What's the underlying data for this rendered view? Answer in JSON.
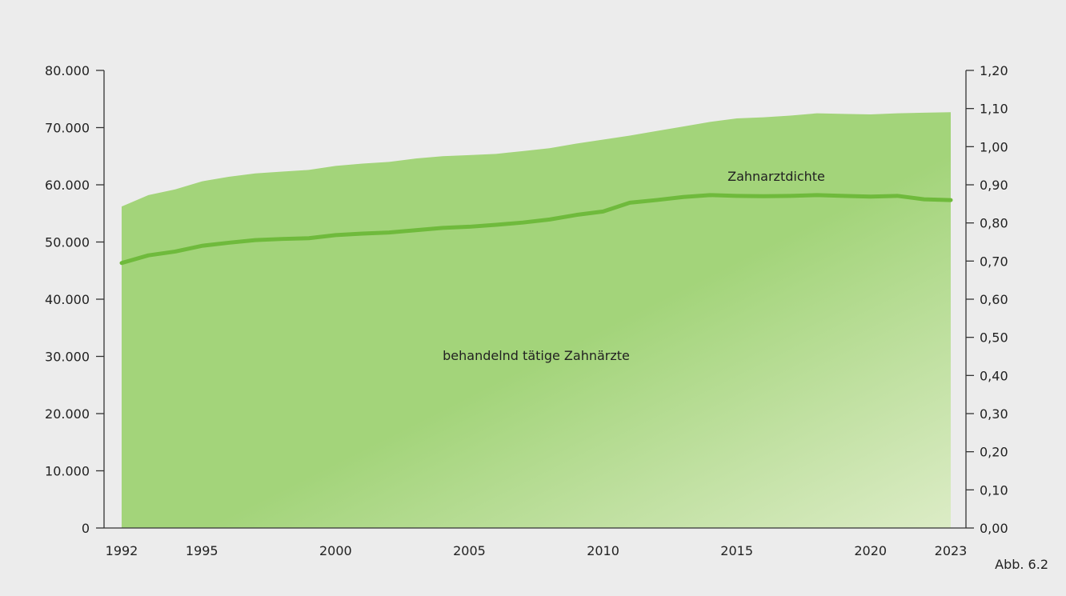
{
  "chart_data": {
    "type": "area",
    "x": [
      1992,
      1993,
      1994,
      1995,
      1996,
      1997,
      1998,
      1999,
      2000,
      2001,
      2002,
      2003,
      2004,
      2005,
      2006,
      2007,
      2008,
      2009,
      2010,
      2011,
      2012,
      2013,
      2014,
      2015,
      2016,
      2017,
      2018,
      2019,
      2020,
      2021,
      2022,
      2023
    ],
    "x_ticks": [
      1992,
      1995,
      2000,
      2005,
      2010,
      2015,
      2020,
      2023
    ],
    "x_tick_labels": [
      "1992",
      "1995",
      "2000",
      "2005",
      "2010",
      "2015",
      "2020",
      "2023"
    ],
    "series": [
      {
        "name": "behandelnd tätige Zahnärzte",
        "type": "area",
        "axis": "left",
        "values": [
          56200,
          58200,
          59200,
          60600,
          61400,
          62000,
          62300,
          62600,
          63300,
          63700,
          64000,
          64600,
          65000,
          65200,
          65400,
          65900,
          66400,
          67200,
          67900,
          68600,
          69400,
          70200,
          71000,
          71600,
          71800,
          72100,
          72500,
          72400,
          72300,
          72500,
          72600,
          72700
        ]
      },
      {
        "name": "Zahnarztdichte",
        "type": "line",
        "axis": "right",
        "values": [
          0.695,
          0.715,
          0.725,
          0.74,
          0.748,
          0.755,
          0.758,
          0.76,
          0.768,
          0.772,
          0.775,
          0.781,
          0.787,
          0.79,
          0.795,
          0.801,
          0.809,
          0.821,
          0.83,
          0.853,
          0.86,
          0.868,
          0.873,
          0.871,
          0.87,
          0.871,
          0.873,
          0.871,
          0.869,
          0.871,
          0.862,
          0.86
        ]
      }
    ],
    "y_left": {
      "ylim": [
        0,
        80000
      ],
      "ticks": [
        0,
        10000,
        20000,
        30000,
        40000,
        50000,
        60000,
        70000,
        80000
      ],
      "tick_labels": [
        "0",
        "10.000",
        "20.000",
        "30.000",
        "40.000",
        "50.000",
        "60.000",
        "70.000",
        "80.000"
      ]
    },
    "y_right": {
      "ylim": [
        0,
        1.2
      ],
      "ticks": [
        0,
        0.1,
        0.2,
        0.3,
        0.4,
        0.5,
        0.6,
        0.7,
        0.8,
        0.9,
        1.0,
        1.1,
        1.2
      ],
      "tick_labels": [
        "0,00",
        "0,10",
        "0,20",
        "0,30",
        "0,40",
        "0,50",
        "0,60",
        "0,70",
        "0,80",
        "0,90",
        "1,00",
        "1,10",
        "1,20"
      ]
    },
    "annotations": [
      "Zahnarztdichte",
      "behandelnd tätige Zahnärzte"
    ],
    "legend": "none",
    "grid": false
  },
  "colors": {
    "area_top": "#a3d47a",
    "area_bottom": "#dcecc6",
    "line": "#6fba3c",
    "axis": "#333333",
    "background": "#ececec"
  },
  "footnote": "Abb. 6.2"
}
